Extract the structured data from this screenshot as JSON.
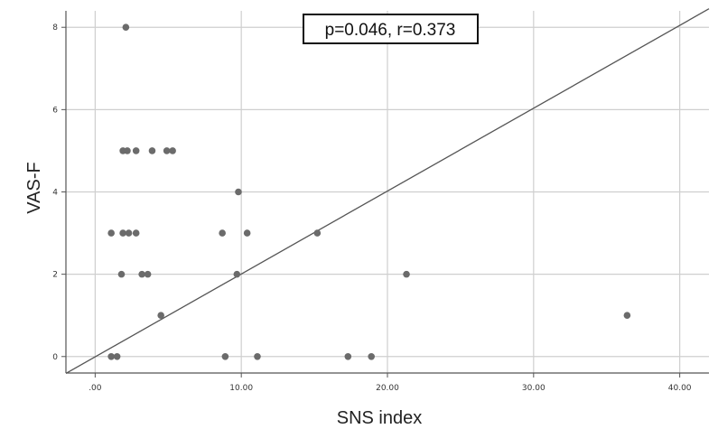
{
  "chart_data": {
    "type": "scatter",
    "title": "",
    "xlabel": "SNS index",
    "ylabel": "VAS-F",
    "xlim": [
      -2,
      42
    ],
    "ylim": [
      -0.4,
      8.4
    ],
    "x_ticks": [
      {
        "value": 0,
        "label": ".00"
      },
      {
        "value": 10,
        "label": "10.00"
      },
      {
        "value": 20,
        "label": "20.00"
      },
      {
        "value": 30,
        "label": "30.00"
      },
      {
        "value": 40,
        "label": "40.00"
      }
    ],
    "y_ticks": [
      {
        "value": 0,
        "label": "0"
      },
      {
        "value": 2,
        "label": "2"
      },
      {
        "value": 4,
        "label": "4"
      },
      {
        "value": 6,
        "label": "6"
      },
      {
        "value": 8,
        "label": "8"
      }
    ],
    "grid": true,
    "annotation": "p=0.046, r=0.373",
    "colors": {
      "points": "#6b6b6b",
      "line": "#555555",
      "grid": "#cfcfcf",
      "axis": "#555555"
    },
    "fit_line": {
      "x": [
        -2,
        42
      ],
      "y": [
        -0.41,
        8.45
      ]
    },
    "points": [
      {
        "x": 2.1,
        "y": 8
      },
      {
        "x": 1.9,
        "y": 5
      },
      {
        "x": 2.2,
        "y": 5
      },
      {
        "x": 2.8,
        "y": 5
      },
      {
        "x": 3.9,
        "y": 5
      },
      {
        "x": 4.9,
        "y": 5
      },
      {
        "x": 5.3,
        "y": 5
      },
      {
        "x": 9.8,
        "y": 4
      },
      {
        "x": 1.1,
        "y": 3
      },
      {
        "x": 1.9,
        "y": 3
      },
      {
        "x": 2.3,
        "y": 3
      },
      {
        "x": 2.8,
        "y": 3
      },
      {
        "x": 8.7,
        "y": 3
      },
      {
        "x": 10.4,
        "y": 3
      },
      {
        "x": 15.2,
        "y": 3
      },
      {
        "x": 1.8,
        "y": 2
      },
      {
        "x": 3.2,
        "y": 2
      },
      {
        "x": 3.6,
        "y": 2
      },
      {
        "x": 9.7,
        "y": 2
      },
      {
        "x": 21.3,
        "y": 2
      },
      {
        "x": 4.5,
        "y": 1
      },
      {
        "x": 36.4,
        "y": 1
      },
      {
        "x": 1.1,
        "y": 0
      },
      {
        "x": 1.5,
        "y": 0
      },
      {
        "x": 8.9,
        "y": 0
      },
      {
        "x": 11.1,
        "y": 0
      },
      {
        "x": 17.3,
        "y": 0
      },
      {
        "x": 18.9,
        "y": 0
      }
    ]
  }
}
